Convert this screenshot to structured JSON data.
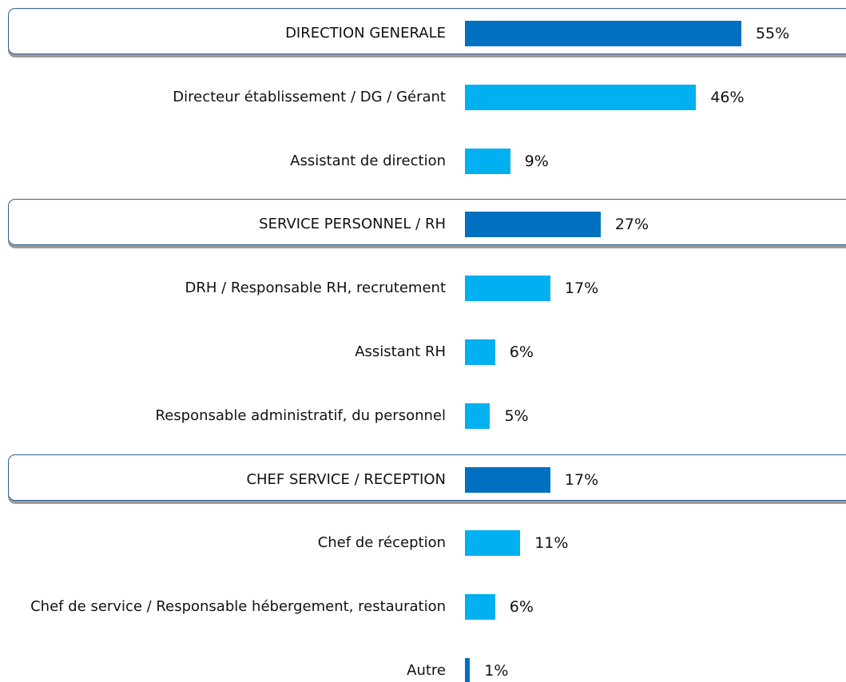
{
  "chart_data": {
    "type": "bar",
    "orientation": "horizontal",
    "categories": [
      "DIRECTION GENERALE",
      "Directeur établissement / DG / Gérant",
      "Assistant de direction",
      "SERVICE PERSONNEL / RH",
      "DRH / Responsable RH, recrutement",
      "Assistant RH",
      "Responsable administratif, du personnel",
      "CHEF SERVICE / RECEPTION",
      "Chef de réception",
      "Chef de service / Responsable hébergement, restauration",
      "Autre"
    ],
    "values": [
      55,
      46,
      9,
      27,
      17,
      6,
      5,
      17,
      11,
      6,
      1
    ],
    "value_labels": [
      "55%",
      "46%",
      "9%",
      "27%",
      "17%",
      "6%",
      "5%",
      "17%",
      "11%",
      "6%",
      "1%"
    ],
    "colors": [
      "#0070c0",
      "#00b0f0",
      "#00b0f0",
      "#0070c0",
      "#00b0f0",
      "#00b0f0",
      "#00b0f0",
      "#0070c0",
      "#00b0f0",
      "#00b0f0",
      "#0070c0"
    ]
  }
}
